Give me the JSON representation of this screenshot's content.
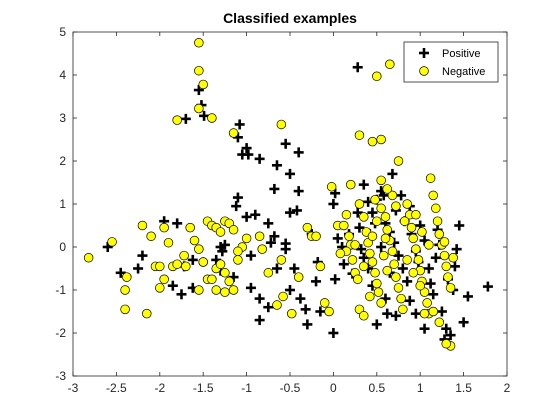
{
  "chart_data": {
    "type": "scatter",
    "title": "Classified examples",
    "xlabel": "",
    "ylabel": "",
    "xlim": [
      -3,
      2
    ],
    "ylim": [
      -3,
      5
    ],
    "xticks": [
      "-3",
      "-2.5",
      "-2",
      "-1.5",
      "-1",
      "-0.5",
      "0",
      "0.5",
      "1",
      "1.5",
      "2"
    ],
    "yticks": [
      "-3",
      "-2",
      "-1",
      "0",
      "1",
      "2",
      "3",
      "4",
      "5"
    ],
    "grid": false,
    "legend_position": "top-right",
    "series": [
      {
        "name": "Positive",
        "marker": "plus",
        "color": "#000000",
        "points": [
          [
            -1.55,
            3.65
          ],
          [
            -1.52,
            3.3
          ],
          [
            -1.49,
            3.05
          ],
          [
            -1.7,
            2.98
          ],
          [
            -1.08,
            2.85
          ],
          [
            -1.1,
            2.55
          ],
          [
            -1.0,
            2.3
          ],
          [
            -1.05,
            2.15
          ],
          [
            -0.98,
            2.15
          ],
          [
            -0.85,
            2.05
          ],
          [
            -0.55,
            2.4
          ],
          [
            -0.4,
            2.2
          ],
          [
            -0.65,
            1.9
          ],
          [
            -0.5,
            1.7
          ],
          [
            -0.68,
            1.35
          ],
          [
            -0.4,
            1.3
          ],
          [
            -1.1,
            1.15
          ],
          [
            -1.12,
            0.95
          ],
          [
            -0.9,
            0.75
          ],
          [
            -1.0,
            0.7
          ],
          [
            -0.75,
            0.55
          ],
          [
            -0.5,
            0.8
          ],
          [
            -0.42,
            0.85
          ],
          [
            -0.68,
            0.25
          ],
          [
            -0.72,
            0.1
          ],
          [
            -0.55,
            0.08
          ],
          [
            -1.25,
            0.05
          ],
          [
            -1.3,
            0.0
          ],
          [
            -1.35,
            -0.3
          ],
          [
            -1.28,
            -0.1
          ],
          [
            -1.62,
            -0.3
          ],
          [
            -1.72,
            -0.45
          ],
          [
            -1.8,
            0.55
          ],
          [
            -1.95,
            0.6
          ],
          [
            -2.2,
            -0.2
          ],
          [
            -2.25,
            -0.5
          ],
          [
            -2.45,
            -0.6
          ],
          [
            -2.6,
            0.0
          ],
          [
            -1.85,
            -0.9
          ],
          [
            -1.62,
            -0.95
          ],
          [
            -1.75,
            -1.1
          ],
          [
            -1.3,
            -0.55
          ],
          [
            -1.15,
            -0.7
          ],
          [
            -0.95,
            -0.2
          ],
          [
            -0.95,
            -0.95
          ],
          [
            -0.85,
            -1.2
          ],
          [
            -0.75,
            -1.4
          ],
          [
            -0.85,
            -1.7
          ],
          [
            -0.65,
            -0.5
          ],
          [
            -0.55,
            -0.05
          ],
          [
            -0.45,
            -0.5
          ],
          [
            -0.38,
            -1.2
          ],
          [
            -0.32,
            -1.45
          ],
          [
            -0.3,
            -1.8
          ],
          [
            -0.5,
            -1.0
          ],
          [
            -0.2,
            -0.8
          ],
          [
            -0.18,
            -0.35
          ],
          [
            -0.25,
            0.3
          ],
          [
            0.02,
            1.25
          ],
          [
            0.0,
            1.0
          ],
          [
            0.05,
            0.2
          ],
          [
            0.1,
            0.0
          ],
          [
            0.12,
            -0.4
          ],
          [
            0.02,
            -0.75
          ],
          [
            -0.15,
            -1.5
          ],
          [
            0.0,
            -2.0
          ],
          [
            0.28,
            4.18
          ],
          [
            0.35,
            1.45
          ],
          [
            0.4,
            1.05
          ],
          [
            0.45,
            0.8
          ],
          [
            0.5,
            1.1
          ],
          [
            0.55,
            1.3
          ],
          [
            0.58,
            1.2
          ],
          [
            0.6,
            0.55
          ],
          [
            0.65,
            0.35
          ],
          [
            0.7,
            0.1
          ],
          [
            0.75,
            -0.2
          ],
          [
            0.8,
            -0.5
          ],
          [
            0.85,
            -0.8
          ],
          [
            0.6,
            -1.2
          ],
          [
            0.5,
            -1.8
          ],
          [
            0.45,
            -0.9
          ],
          [
            0.4,
            -0.5
          ],
          [
            0.35,
            -0.25
          ],
          [
            0.3,
            0.45
          ],
          [
            0.28,
            0.8
          ],
          [
            0.42,
            0.3
          ],
          [
            0.55,
            0.0
          ],
          [
            0.68,
            1.7
          ],
          [
            0.72,
            0.85
          ],
          [
            0.78,
            1.2
          ],
          [
            0.82,
            0.6
          ],
          [
            0.88,
            0.95
          ],
          [
            0.9,
            0.3
          ],
          [
            0.95,
            -0.1
          ],
          [
            1.0,
            0.5
          ],
          [
            1.05,
            0.15
          ],
          [
            1.1,
            -0.5
          ],
          [
            1.15,
            -1.1
          ],
          [
            1.2,
            0.4
          ],
          [
            1.22,
            0.05
          ],
          [
            1.25,
            -1.5
          ],
          [
            1.28,
            -2.15
          ],
          [
            1.3,
            -1.9
          ],
          [
            1.35,
            -2.05
          ],
          [
            1.32,
            -0.75
          ],
          [
            1.38,
            -1.0
          ],
          [
            1.4,
            -0.45
          ],
          [
            1.42,
            -0.05
          ],
          [
            1.45,
            0.5
          ],
          [
            1.5,
            -1.75
          ],
          [
            1.55,
            -1.15
          ],
          [
            1.78,
            -0.92
          ],
          [
            0.62,
            -1.55
          ],
          [
            0.72,
            -1.6
          ],
          [
            0.95,
            -1.55
          ],
          [
            1.05,
            -1.9
          ],
          [
            1.12,
            -0.85
          ],
          [
            0.32,
            -0.05
          ],
          [
            0.18,
            0.3
          ],
          [
            0.22,
            -0.62
          ],
          [
            0.48,
            0.55
          ],
          [
            0.65,
            -0.6
          ],
          [
            0.98,
            -0.35
          ],
          [
            0.88,
            -1.25
          ],
          [
            1.18,
            -0.25
          ]
        ]
      },
      {
        "name": "Negative",
        "marker": "circle",
        "color": "#ffff00",
        "points": [
          [
            -1.55,
            4.75
          ],
          [
            -1.55,
            4.1
          ],
          [
            -1.5,
            3.78
          ],
          [
            -1.55,
            3.22
          ],
          [
            -1.4,
            3.0
          ],
          [
            -1.8,
            2.95
          ],
          [
            -0.6,
            2.85
          ],
          [
            -1.15,
            2.65
          ],
          [
            -2.82,
            -0.25
          ],
          [
            -2.55,
            0.12
          ],
          [
            -2.38,
            -0.7
          ],
          [
            -2.4,
            -1.0
          ],
          [
            -2.4,
            -1.45
          ],
          [
            -2.2,
            0.5
          ],
          [
            -2.1,
            0.25
          ],
          [
            -1.95,
            0.45
          ],
          [
            -1.9,
            0.1
          ],
          [
            -1.85,
            -0.45
          ],
          [
            -1.8,
            -0.4
          ],
          [
            -1.7,
            -0.45
          ],
          [
            -1.72,
            -0.2
          ],
          [
            -1.65,
            0.45
          ],
          [
            -1.6,
            0.15
          ],
          [
            -1.55,
            -0.05
          ],
          [
            -1.5,
            -0.35
          ],
          [
            -1.45,
            -0.75
          ],
          [
            -1.4,
            -0.75
          ],
          [
            -1.35,
            -0.5
          ],
          [
            -1.3,
            -0.4
          ],
          [
            -1.25,
            -0.6
          ],
          [
            -1.2,
            -0.8
          ],
          [
            -1.15,
            -1.0
          ],
          [
            -1.1,
            -0.3
          ],
          [
            -1.05,
            0.0
          ],
          [
            -1.0,
            0.2
          ],
          [
            -1.45,
            0.6
          ],
          [
            -1.4,
            0.5
          ],
          [
            -1.35,
            0.45
          ],
          [
            -1.3,
            0.35
          ],
          [
            -1.25,
            0.6
          ],
          [
            -1.2,
            0.55
          ],
          [
            -1.15,
            0.4
          ],
          [
            -1.1,
            -0.1
          ],
          [
            -2.05,
            -0.45
          ],
          [
            -2.0,
            -0.45
          ],
          [
            -1.95,
            -0.75
          ],
          [
            -2.0,
            -0.95
          ],
          [
            -2.15,
            -1.55
          ],
          [
            -1.55,
            -1.0
          ],
          [
            -1.35,
            -1.0
          ],
          [
            -1.25,
            -1.05
          ],
          [
            -1.5,
            -0.35
          ],
          [
            -0.85,
            0.25
          ],
          [
            -0.82,
            -0.05
          ],
          [
            -0.75,
            -0.6
          ],
          [
            -0.6,
            -0.3
          ],
          [
            -0.58,
            -1.15
          ],
          [
            -0.65,
            -1.35
          ],
          [
            -0.48,
            -1.55
          ],
          [
            -0.4,
            -0.7
          ],
          [
            -0.3,
            0.45
          ],
          [
            -0.25,
            0.25
          ],
          [
            -0.2,
            0.25
          ],
          [
            -0.15,
            -0.45
          ],
          [
            -0.1,
            -1.3
          ],
          [
            -0.05,
            -1.5
          ],
          [
            -0.02,
            1.4
          ],
          [
            0.05,
            0.5
          ],
          [
            0.12,
            0.5
          ],
          [
            0.15,
            0.75
          ],
          [
            0.18,
            0.25
          ],
          [
            0.2,
            0.05
          ],
          [
            0.22,
            -0.3
          ],
          [
            0.25,
            -0.6
          ],
          [
            0.28,
            -0.75
          ],
          [
            0.3,
            -1.45
          ],
          [
            0.35,
            -1.6
          ],
          [
            0.3,
            2.6
          ],
          [
            0.45,
            2.45
          ],
          [
            0.55,
            2.5
          ],
          [
            0.75,
            2.0
          ],
          [
            0.5,
            3.97
          ],
          [
            0.65,
            4.25
          ],
          [
            0.2,
            1.45
          ],
          [
            0.3,
            1.0
          ],
          [
            0.35,
            0.7
          ],
          [
            0.38,
            0.35
          ],
          [
            0.4,
            0.1
          ],
          [
            0.42,
            -0.15
          ],
          [
            0.45,
            -0.35
          ],
          [
            0.48,
            -0.6
          ],
          [
            0.5,
            -0.85
          ],
          [
            0.52,
            -1.05
          ],
          [
            0.55,
            -1.3
          ],
          [
            0.55,
            0.9
          ],
          [
            0.6,
            0.7
          ],
          [
            0.62,
            0.4
          ],
          [
            0.65,
            0.15
          ],
          [
            0.68,
            -0.1
          ],
          [
            0.7,
            -0.4
          ],
          [
            0.72,
            -0.7
          ],
          [
            0.75,
            -0.95
          ],
          [
            0.78,
            -1.2
          ],
          [
            0.8,
            -1.45
          ],
          [
            0.85,
            1.0
          ],
          [
            0.88,
            0.75
          ],
          [
            0.9,
            0.45
          ],
          [
            0.92,
            0.2
          ],
          [
            0.95,
            -0.05
          ],
          [
            0.98,
            -0.3
          ],
          [
            1.0,
            -0.55
          ],
          [
            1.02,
            -0.8
          ],
          [
            1.05,
            -1.05
          ],
          [
            1.08,
            -1.3
          ],
          [
            1.1,
            -1.55
          ],
          [
            1.12,
            1.6
          ],
          [
            1.15,
            1.2
          ],
          [
            1.18,
            0.9
          ],
          [
            1.2,
            0.6
          ],
          [
            1.22,
            0.3
          ],
          [
            1.25,
            0.05
          ],
          [
            1.28,
            -0.2
          ],
          [
            1.3,
            -0.45
          ],
          [
            1.32,
            -0.7
          ],
          [
            1.35,
            -0.95
          ],
          [
            1.35,
            -2.3
          ],
          [
            1.3,
            -2.25
          ],
          [
            1.22,
            -1.75
          ],
          [
            1.15,
            -1.5
          ],
          [
            1.05,
            -1.55
          ],
          [
            0.6,
            0.2
          ],
          [
            0.58,
            -0.2
          ],
          [
            0.45,
            0.25
          ],
          [
            0.25,
            0.05
          ],
          [
            0.15,
            -0.1
          ],
          [
            0.08,
            -0.15
          ],
          [
            0.68,
            1.2
          ],
          [
            0.55,
            1.55
          ],
          [
            0.48,
            1.1
          ],
          [
            0.62,
            1.35
          ],
          [
            0.72,
            0.95
          ],
          [
            0.82,
            0.6
          ],
          [
            0.95,
            0.75
          ],
          [
            1.02,
            0.35
          ],
          [
            1.1,
            0.05
          ],
          [
            1.28,
            0.12
          ],
          [
            1.38,
            -0.25
          ],
          [
            0.42,
            -1.15
          ],
          [
            0.62,
            -0.55
          ],
          [
            0.85,
            -0.3
          ],
          [
            0.92,
            -0.6
          ],
          [
            1.0,
            -0.9
          ],
          [
            0.5,
            0.6
          ],
          [
            0.35,
            -0.45
          ]
        ]
      }
    ]
  }
}
